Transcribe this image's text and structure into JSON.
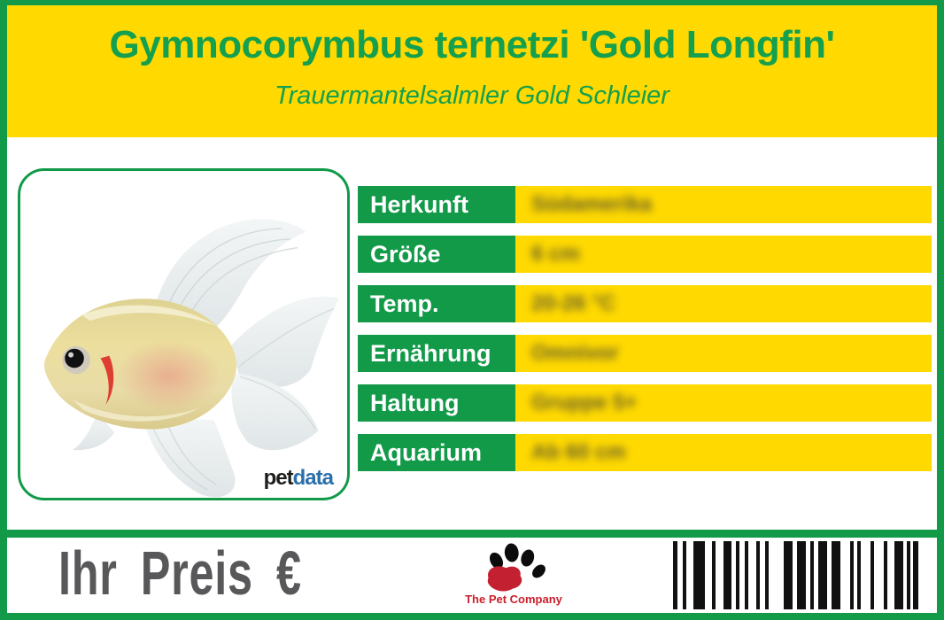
{
  "colors": {
    "green": "#129a49",
    "yellow": "#ffd900",
    "text_green": "#14a04e",
    "white": "#ffffff",
    "price_gray": "#58585a",
    "blur_text": "#403f35",
    "logo_red": "#c9202c",
    "petdata_pet": "#1d1d1b",
    "petdata_data": "#2b6fa9",
    "barcode_black": "#111111"
  },
  "header": {
    "title": "Gymnocorymbus ternetzi 'Gold Longfin'",
    "subtitle": "Trauermantelsalmler Gold Schleier"
  },
  "photo": {
    "subject": "gold-longfin-tetra-fish",
    "brand": {
      "pet": "pet",
      "data": "data"
    }
  },
  "table": {
    "values_blurred": true,
    "rows": [
      {
        "label": "Herkunft",
        "value": "Südamerika"
      },
      {
        "label": "Größe",
        "value": "6 cm"
      },
      {
        "label": "Temp.",
        "value": "20-26 °C"
      },
      {
        "label": "Ernährung",
        "value": "Omnivor"
      },
      {
        "label": "Haltung",
        "value": "Gruppe 5+"
      },
      {
        "label": "Aquarium",
        "value": "Ab 60 cm"
      }
    ]
  },
  "footer": {
    "price_label": "Ihr Preis €",
    "company_name": "The Pet Company",
    "barcode": {
      "bars": [
        [
          5,
          6
        ],
        [
          4,
          8
        ],
        [
          13,
          8
        ],
        [
          4,
          9
        ],
        [
          9,
          5
        ],
        [
          4,
          6
        ],
        [
          4,
          9
        ],
        [
          4,
          6
        ],
        [
          4,
          17
        ],
        [
          10,
          5
        ],
        [
          10,
          5
        ],
        [
          4,
          5
        ],
        [
          10,
          5
        ],
        [
          10,
          11
        ],
        [
          4,
          4
        ],
        [
          4,
          11
        ],
        [
          4,
          11
        ],
        [
          4,
          8
        ],
        [
          10,
          4
        ],
        [
          4,
          3
        ],
        [
          11,
          0
        ]
      ]
    }
  }
}
